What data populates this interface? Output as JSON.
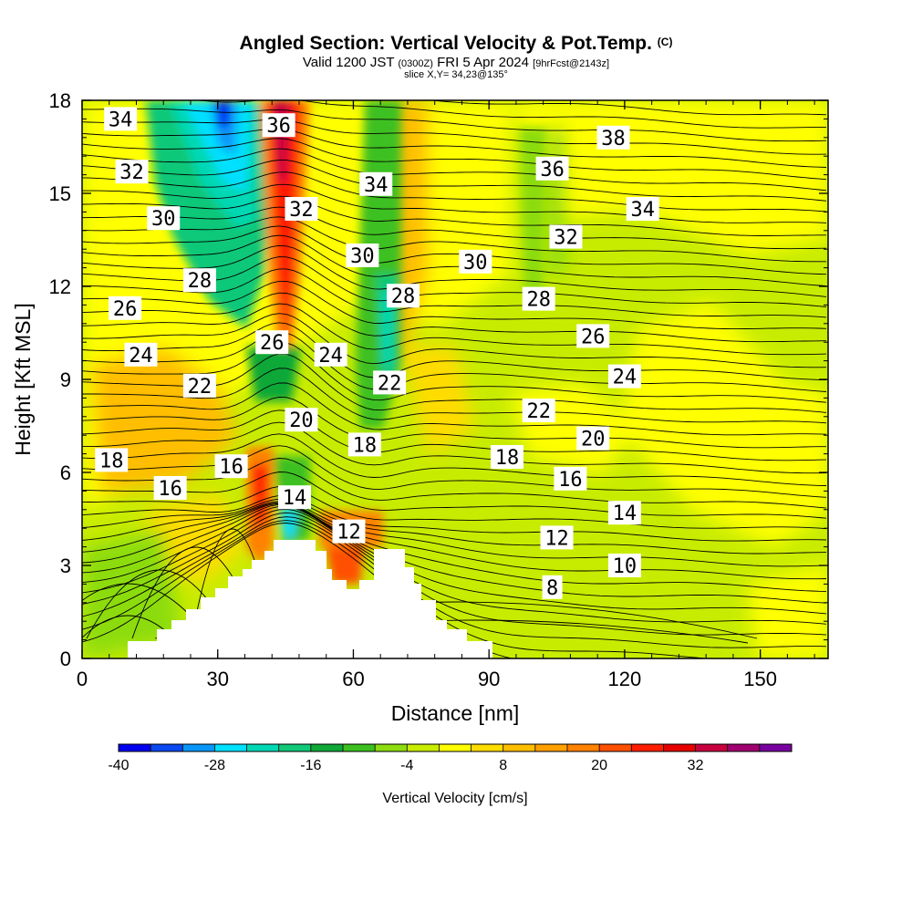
{
  "header": {
    "title_main": "Angled Section: Vertical Velocity & Pot.Temp.",
    "title_suffix": "(C)",
    "sub_a": "Valid 1200 JST",
    "sub_b": "(0300Z)",
    "sub_c": "FRI 5 Apr 2024",
    "sub_d": "[9hrFcst@2143z]",
    "slice": "slice X,Y= 34,23@135°"
  },
  "chart_data": {
    "type": "heatmap",
    "xlabel": "Distance [nm]",
    "ylabel": "Height [Kft MSL]",
    "xlim": [
      0,
      165
    ],
    "ylim": [
      0,
      18
    ],
    "xticks": [
      0,
      30,
      60,
      90,
      120,
      150
    ],
    "yticks": [
      0,
      3,
      6,
      9,
      12,
      15,
      18
    ],
    "colorbar": {
      "label": "Vertical Velocity [cm/s]",
      "tick_labels": [
        "-40",
        "-28",
        "-16",
        "-4",
        "8",
        "20",
        "32"
      ],
      "tick_values": [
        -40,
        -28,
        -16,
        -4,
        8,
        20,
        32
      ],
      "range": [
        -40,
        44
      ],
      "step": 4,
      "colors": [
        "#0000ee",
        "#0a48f0",
        "#0896f8",
        "#00e0ff",
        "#00d8b4",
        "#10c878",
        "#10a838",
        "#3cc020",
        "#8cdc10",
        "#c8ec00",
        "#ffff00",
        "#ffdc00",
        "#ffbe00",
        "#ffa000",
        "#ff8200",
        "#ff5000",
        "#ff1e00",
        "#e60000",
        "#c80040",
        "#a00070",
        "#7800a0"
      ]
    },
    "theta_labels": [
      {
        "text": "34",
        "x": 8.5,
        "y": 17.4
      },
      {
        "text": "36",
        "x": 43.5,
        "y": 17.2
      },
      {
        "text": "38",
        "x": 117.5,
        "y": 16.8
      },
      {
        "text": "32",
        "x": 11,
        "y": 15.7
      },
      {
        "text": "36",
        "x": 104,
        "y": 15.8
      },
      {
        "text": "34",
        "x": 65,
        "y": 15.3
      },
      {
        "text": "30",
        "x": 18,
        "y": 14.2
      },
      {
        "text": "32",
        "x": 48.5,
        "y": 14.5
      },
      {
        "text": "34",
        "x": 124,
        "y": 14.5
      },
      {
        "text": "32",
        "x": 107,
        "y": 13.6
      },
      {
        "text": "30",
        "x": 62,
        "y": 13.0
      },
      {
        "text": "30",
        "x": 87,
        "y": 12.8
      },
      {
        "text": "28",
        "x": 26,
        "y": 12.2
      },
      {
        "text": "28",
        "x": 71,
        "y": 11.7
      },
      {
        "text": "28",
        "x": 101,
        "y": 11.6
      },
      {
        "text": "26",
        "x": 9.5,
        "y": 11.3
      },
      {
        "text": "26",
        "x": 42,
        "y": 10.2
      },
      {
        "text": "26",
        "x": 113,
        "y": 10.4
      },
      {
        "text": "24",
        "x": 13,
        "y": 9.8
      },
      {
        "text": "24",
        "x": 55,
        "y": 9.8
      },
      {
        "text": "24",
        "x": 120,
        "y": 9.1
      },
      {
        "text": "22",
        "x": 26,
        "y": 8.8
      },
      {
        "text": "22",
        "x": 68,
        "y": 8.9
      },
      {
        "text": "22",
        "x": 101,
        "y": 8.0
      },
      {
        "text": "20",
        "x": 48.5,
        "y": 7.7
      },
      {
        "text": "20",
        "x": 113,
        "y": 7.1
      },
      {
        "text": "18",
        "x": 6.5,
        "y": 6.4
      },
      {
        "text": "18",
        "x": 62.5,
        "y": 6.9
      },
      {
        "text": "18",
        "x": 94,
        "y": 6.5
      },
      {
        "text": "16",
        "x": 33,
        "y": 6.2
      },
      {
        "text": "16",
        "x": 19.5,
        "y": 5.5
      },
      {
        "text": "16",
        "x": 108,
        "y": 5.8
      },
      {
        "text": "14",
        "x": 47,
        "y": 5.2
      },
      {
        "text": "14",
        "x": 120,
        "y": 4.7
      },
      {
        "text": "12",
        "x": 59,
        "y": 4.1
      },
      {
        "text": "12",
        "x": 105,
        "y": 3.9
      },
      {
        "text": "10",
        "x": 120,
        "y": 3.0
      },
      {
        "text": "8",
        "x": 104,
        "y": 2.3
      }
    ]
  }
}
